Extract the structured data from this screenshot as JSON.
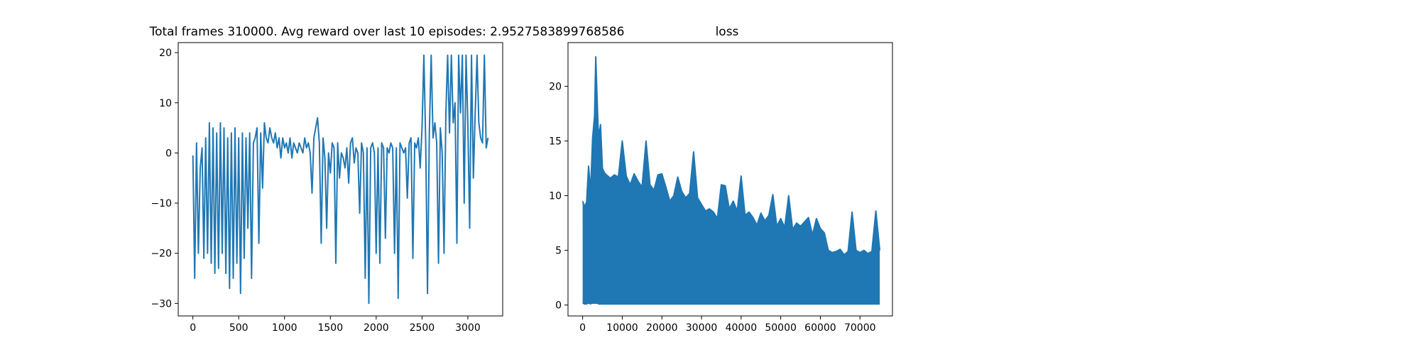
{
  "figure": {
    "background": "#ffffff",
    "series_color": "#1f77b4"
  },
  "chart_data": [
    {
      "type": "line",
      "title": "Total frames 310000. Avg reward over last 10 episodes: 2.9527583899768586",
      "xlabel": "",
      "ylabel": "",
      "xlim": [
        -160,
        3380
      ],
      "ylim": [
        -32.5,
        22
      ],
      "xticks": [
        0,
        500,
        1000,
        1500,
        2000,
        2500,
        3000
      ],
      "yticks": [
        -30,
        -20,
        -10,
        0,
        10,
        20
      ],
      "grid": false,
      "series": [
        {
          "x": [
            0,
            20,
            40,
            60,
            80,
            100,
            120,
            140,
            160,
            180,
            200,
            220,
            240,
            260,
            280,
            300,
            320,
            340,
            360,
            380,
            400,
            420,
            440,
            460,
            480,
            500,
            520,
            540,
            560,
            580,
            600,
            620,
            640,
            660,
            680,
            700,
            720,
            740,
            760,
            780,
            800,
            820,
            840,
            860,
            880,
            900,
            920,
            940,
            960,
            980,
            1000,
            1020,
            1040,
            1060,
            1080,
            1100,
            1120,
            1140,
            1160,
            1180,
            1200,
            1220,
            1240,
            1260,
            1280,
            1300,
            1320,
            1340,
            1360,
            1380,
            1400,
            1420,
            1440,
            1460,
            1480,
            1500,
            1520,
            1540,
            1560,
            1580,
            1600,
            1620,
            1640,
            1660,
            1680,
            1700,
            1720,
            1740,
            1760,
            1780,
            1800,
            1820,
            1840,
            1860,
            1880,
            1900,
            1920,
            1940,
            1960,
            1980,
            2000,
            2020,
            2040,
            2060,
            2080,
            2100,
            2120,
            2140,
            2160,
            2180,
            2200,
            2220,
            2240,
            2260,
            2280,
            2300,
            2320,
            2340,
            2360,
            2380,
            2400,
            2420,
            2440,
            2460,
            2480,
            2500,
            2520,
            2540,
            2560,
            2580,
            2600,
            2620,
            2640,
            2660,
            2680,
            2700,
            2720,
            2740,
            2760,
            2780,
            2800,
            2820,
            2840,
            2860,
            2880,
            2900,
            2920,
            2940,
            2960,
            2980,
            3000,
            3020,
            3040,
            3060,
            3080,
            3100,
            3120,
            3140,
            3160,
            3180,
            3200,
            3220
          ],
          "values": [
            -0.5,
            -25,
            2,
            -20,
            -3,
            1,
            -21,
            3,
            -20,
            6,
            -22,
            5,
            -24,
            4,
            -23,
            6,
            -20,
            5,
            -24,
            3,
            -27,
            4,
            -25,
            5,
            -22,
            3,
            -28,
            4,
            -21,
            3,
            -15,
            4,
            -25,
            2,
            3,
            5,
            -18,
            4,
            -7,
            6,
            3,
            2,
            5,
            3,
            2,
            4,
            1,
            3,
            -1,
            3,
            1,
            2,
            0,
            3,
            -1,
            2,
            1,
            0,
            2,
            1,
            0,
            3,
            1,
            2,
            0,
            -8,
            3,
            5,
            7,
            2,
            -18,
            3,
            -1,
            -15,
            0,
            -4,
            2,
            1,
            -22,
            2,
            -5,
            0,
            -1,
            -3,
            1,
            -6,
            2,
            3,
            -2,
            1,
            0,
            -12,
            2,
            0,
            -25,
            1,
            -30,
            1,
            2,
            0,
            -20,
            1,
            -22,
            2,
            1,
            -17,
            1,
            0,
            2,
            1,
            -20,
            1,
            -29,
            2,
            1,
            0,
            1,
            -9,
            2,
            3,
            -21,
            2,
            1,
            3,
            -3,
            5,
            19.5,
            2,
            -28,
            4,
            19.5,
            3,
            6,
            2,
            -22,
            5,
            0,
            -20,
            8,
            19.5,
            4,
            19.5,
            6,
            10,
            -18,
            19.5,
            8,
            19.5,
            -10,
            19.5,
            6,
            -15,
            19.5,
            -5,
            8,
            19.5,
            6,
            3,
            2,
            19.5,
            1,
            3
          ]
        }
      ]
    },
    {
      "type": "line",
      "title": "loss",
      "xlabel": "",
      "ylabel": "",
      "xlim": [
        -3700,
        78200
      ],
      "ylim": [
        -1,
        24
      ],
      "xticks": [
        0,
        10000,
        20000,
        30000,
        40000,
        50000,
        60000,
        70000
      ],
      "yticks": [
        0,
        5,
        10,
        15,
        20
      ],
      "grid": false,
      "series": [
        {
          "x": [
            0,
            500,
            1000,
            1500,
            2000,
            2500,
            3000,
            3300,
            3600,
            3900,
            4200,
            4500,
            5000,
            5500,
            6000,
            7000,
            8000,
            9000,
            10000,
            11000,
            12000,
            13000,
            14000,
            15000,
            16000,
            17000,
            18000,
            19000,
            20000,
            21000,
            22000,
            23000,
            24000,
            25000,
            26000,
            27000,
            28000,
            29000,
            30000,
            31000,
            32000,
            33000,
            34000,
            35000,
            36000,
            37000,
            38000,
            39000,
            40000,
            41000,
            42000,
            43000,
            44000,
            45000,
            46000,
            47000,
            48000,
            49000,
            50000,
            51000,
            52000,
            53000,
            54000,
            55000,
            56000,
            57000,
            58000,
            59000,
            60000,
            61000,
            62000,
            63000,
            64000,
            65000,
            66000,
            67000,
            68000,
            69000,
            70000,
            71000,
            72000,
            73000,
            74000,
            75000
          ],
          "values": [
            9.5,
            9.0,
            9.4,
            12.7,
            10.3,
            15.2,
            17.3,
            22.7,
            19.5,
            16.2,
            15.6,
            16.5,
            12.5,
            12.1,
            11.9,
            11.6,
            11.9,
            11.7,
            15.0,
            11.8,
            11.0,
            12.0,
            11.3,
            10.8,
            15.0,
            11.0,
            10.5,
            11.9,
            12.0,
            10.8,
            9.5,
            10.0,
            11.7,
            10.4,
            9.8,
            10.2,
            14.0,
            9.8,
            9.2,
            8.6,
            8.8,
            8.5,
            7.9,
            11.0,
            10.9,
            8.8,
            9.5,
            8.6,
            11.8,
            8.2,
            8.5,
            8.0,
            7.3,
            8.4,
            7.7,
            8.2,
            10.1,
            7.2,
            7.9,
            7.1,
            10.0,
            6.9,
            7.5,
            7.2,
            7.6,
            8.0,
            6.4,
            7.9,
            7.0,
            6.6,
            5.0,
            4.8,
            4.9,
            5.1,
            4.6,
            4.9,
            8.5,
            5.0,
            4.8,
            5.0,
            4.7,
            4.9,
            8.6,
            5.0
          ]
        },
        {
          "x": [
            0,
            500,
            1000,
            1500,
            2000,
            2500,
            3000,
            3500,
            4000,
            5000,
            10000,
            20000,
            30000,
            40000,
            50000,
            60000,
            70000,
            75000
          ],
          "values": [
            0.2,
            0.1,
            0.1,
            0.2,
            0.1,
            0.3,
            0.8,
            0.3,
            0.1,
            0.1,
            0.1,
            0.1,
            0.1,
            0.1,
            0.1,
            0.1,
            0.1,
            0.1
          ]
        }
      ]
    }
  ]
}
